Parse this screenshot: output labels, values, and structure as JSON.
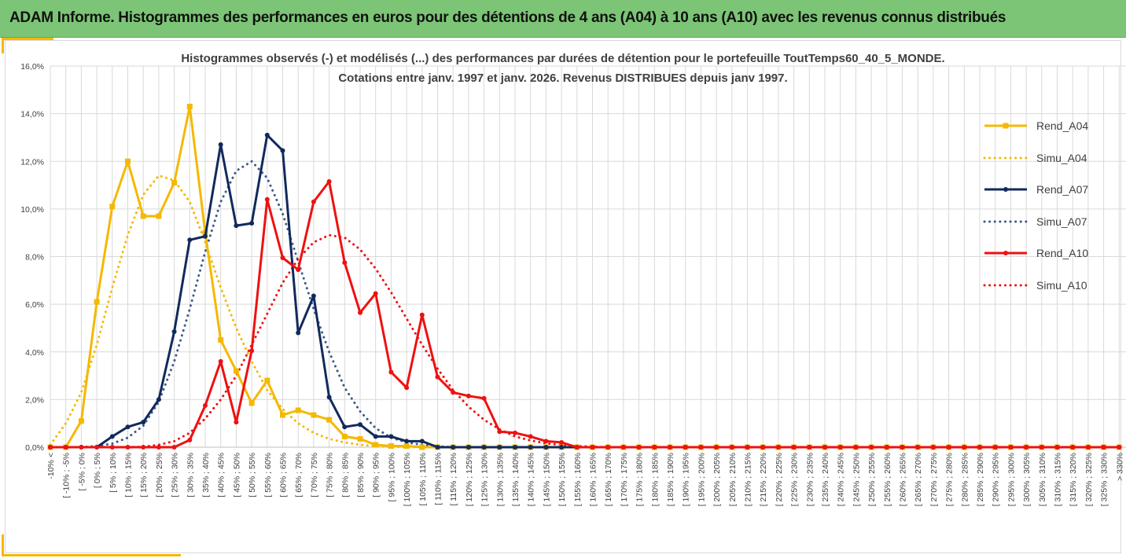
{
  "banner": {
    "title": "ADAM Informe. Histogrammes des performances en euros pour des détentions de 4 ans (A04) à 10 ans (A10) avec les revenus connus distribués",
    "color": "#7cc576",
    "accent_color": "#f5b800"
  },
  "chart_data": {
    "type": "line",
    "title_line1": "Histogrammes observés (-) et modélisés (...) des performances par durées de détention pour le portefeuille ToutTemps60_40_5_MONDE.",
    "title_line2": "Cotations entre janv. 1997 et janv. 2026. Revenus DISTRIBUES depuis janv 1997.",
    "ylim": [
      0,
      16
    ],
    "yticks": [
      "0,0%",
      "2,0%",
      "4,0%",
      "6,0%",
      "8,0%",
      "10,0%",
      "12,0%",
      "14,0%",
      "16,0%"
    ],
    "grid": true,
    "legend_position": "right",
    "categories": [
      "-10% <",
      "[ -10% ; -5%",
      "[ -5% ; 0%",
      "[ 0% ; 5%",
      "[ 5% ; 10%",
      "[ 10% ; 15%",
      "[ 15% ; 20%",
      "[ 20% ; 25%",
      "[ 25% ; 30%",
      "[ 30% ; 35%",
      "[ 35% ; 40%",
      "[ 40% ; 45%",
      "[ 45% ; 50%",
      "[ 50% ; 55%",
      "[ 55% ; 60%",
      "[ 60% ; 65%",
      "[ 65% ; 70%",
      "[ 70% ; 75%",
      "[ 75% ; 80%",
      "[ 80% ; 85%",
      "[ 85% ; 90%",
      "[ 90% ; 95%",
      "[ 95% ; 100%",
      "[ 100% ; 105%",
      "[ 105% ; 110%",
      "[ 110% ; 115%",
      "[ 115% ; 120%",
      "[ 120% ; 125%",
      "[ 125% ; 130%",
      "[ 130% ; 135%",
      "[ 135% ; 140%",
      "[ 140% ; 145%",
      "[ 145% ; 150%",
      "[ 150% ; 155%",
      "[ 155% ; 160%",
      "[ 160% ; 165%",
      "[ 165% ; 170%",
      "[ 170% ; 175%",
      "[ 175% ; 180%",
      "[ 180% ; 185%",
      "[ 185% ; 190%",
      "[ 190% ; 195%",
      "[ 195% ; 200%",
      "[ 200% ; 205%",
      "[ 205% ; 210%",
      "[ 210% ; 215%",
      "[ 215% ; 220%",
      "[ 220% ; 225%",
      "[ 225% ; 230%",
      "[ 230% ; 235%",
      "[ 235% ; 240%",
      "[ 240% ; 245%",
      "[ 245% ; 250%",
      "[ 250% ; 255%",
      "[ 255% ; 260%",
      "[ 260% ; 265%",
      "[ 265% ; 270%",
      "[ 270% ; 275%",
      "[ 275% ; 280%",
      "[ 280% ; 285%",
      "[ 285% ; 290%",
      "[ 290% ; 295%",
      "[ 295% ; 300%",
      "[ 300% ; 305%",
      "[ 305% ; 310%",
      "[ 310% ; 315%",
      "[ 315% ; 320%",
      "[ 320% ; 325%",
      "[ 325% ; 330%",
      "> 330%"
    ],
    "series": [
      {
        "name": "Rend_A04",
        "color": "#f5b800",
        "style": "solid",
        "markers": "square",
        "values": [
          0,
          0,
          1.1,
          6.1,
          10.1,
          12.0,
          9.7,
          9.7,
          11.1,
          14.3,
          9.0,
          4.5,
          3.2,
          1.85,
          2.8,
          1.35,
          1.55,
          1.35,
          1.15,
          0.45,
          0.35,
          0.1,
          0.05,
          0.05,
          0,
          0,
          0,
          0,
          0,
          0,
          0,
          0,
          0,
          0,
          0,
          0,
          0,
          0,
          0,
          0,
          0,
          0,
          0,
          0,
          0,
          0,
          0,
          0,
          0,
          0,
          0,
          0,
          0,
          0,
          0,
          0,
          0,
          0,
          0,
          0,
          0,
          0,
          0,
          0,
          0,
          0,
          0,
          0,
          0,
          0
        ]
      },
      {
        "name": "Simu_A04",
        "color": "#f5b800",
        "style": "dotted",
        "markers": "none",
        "values": [
          0.1,
          1.0,
          2.3,
          4.3,
          6.7,
          8.9,
          10.6,
          11.4,
          11.2,
          10.3,
          8.6,
          6.7,
          5.0,
          3.6,
          2.4,
          1.6,
          1.0,
          0.6,
          0.35,
          0.2,
          0.1,
          0.05,
          0.02,
          0,
          0,
          0,
          0,
          0,
          0,
          0,
          0,
          0,
          0,
          0,
          0,
          0,
          0,
          0,
          0,
          0,
          0,
          0,
          0,
          0,
          0,
          0,
          0,
          0,
          0,
          0,
          0,
          0,
          0,
          0,
          0,
          0,
          0,
          0,
          0,
          0,
          0,
          0,
          0,
          0,
          0,
          0,
          0,
          0,
          0,
          0
        ]
      },
      {
        "name": "Rend_A07",
        "color": "#112a5c",
        "style": "solid",
        "markers": "circle",
        "values": [
          0,
          0,
          0,
          0,
          0.45,
          0.85,
          1.05,
          2.0,
          4.85,
          8.7,
          8.85,
          12.7,
          9.3,
          9.4,
          13.1,
          12.45,
          4.8,
          6.35,
          2.1,
          0.85,
          0.95,
          0.45,
          0.45,
          0.25,
          0.25,
          0,
          0,
          0,
          0,
          0,
          0,
          0,
          0,
          0,
          0,
          0,
          0,
          0,
          0,
          0,
          0,
          0,
          0,
          0,
          0,
          0,
          0,
          0,
          0,
          0,
          0,
          0,
          0,
          0,
          0,
          0,
          0,
          0,
          0,
          0,
          0,
          0,
          0,
          0,
          0,
          0,
          0,
          0,
          0,
          0
        ]
      },
      {
        "name": "Simu_A07",
        "color": "#3a5a86",
        "style": "dotted",
        "markers": "none",
        "values": [
          0,
          0,
          0,
          0.05,
          0.15,
          0.4,
          0.9,
          1.9,
          3.6,
          5.8,
          8.2,
          10.3,
          11.6,
          12.0,
          11.3,
          9.8,
          7.8,
          5.8,
          4.0,
          2.5,
          1.5,
          0.8,
          0.4,
          0.2,
          0.1,
          0.04,
          0,
          0,
          0,
          0,
          0,
          0,
          0,
          0,
          0,
          0,
          0,
          0,
          0,
          0,
          0,
          0,
          0,
          0,
          0,
          0,
          0,
          0,
          0,
          0,
          0,
          0,
          0,
          0,
          0,
          0,
          0,
          0,
          0,
          0,
          0,
          0,
          0,
          0,
          0,
          0,
          0,
          0,
          0,
          0
        ]
      },
      {
        "name": "Rend_A10",
        "color": "#ee1111",
        "style": "solid",
        "markers": "circle",
        "values": [
          0,
          0,
          0,
          0,
          0,
          0,
          0,
          0,
          0,
          0.3,
          1.75,
          3.6,
          1.05,
          4.05,
          10.4,
          7.95,
          7.45,
          10.3,
          11.15,
          7.75,
          5.65,
          6.45,
          3.15,
          2.5,
          5.55,
          2.95,
          2.3,
          2.15,
          2.05,
          0.65,
          0.6,
          0.45,
          0.25,
          0.2,
          0,
          0,
          0,
          0,
          0,
          0,
          0,
          0,
          0,
          0,
          0,
          0,
          0,
          0,
          0,
          0,
          0,
          0,
          0,
          0,
          0,
          0,
          0,
          0,
          0,
          0,
          0,
          0,
          0,
          0,
          0,
          0,
          0,
          0,
          0,
          0
        ]
      },
      {
        "name": "Simu_A10",
        "color": "#ee1111",
        "style": "dotted",
        "markers": "none",
        "values": [
          0,
          0,
          0,
          0,
          0,
          0,
          0.02,
          0.1,
          0.25,
          0.6,
          1.2,
          2.0,
          3.0,
          4.3,
          5.6,
          6.9,
          7.9,
          8.6,
          8.9,
          8.8,
          8.3,
          7.5,
          6.5,
          5.4,
          4.3,
          3.3,
          2.4,
          1.7,
          1.15,
          0.75,
          0.45,
          0.28,
          0.16,
          0.09,
          0.05,
          0.02,
          0,
          0,
          0,
          0,
          0,
          0,
          0,
          0,
          0,
          0,
          0,
          0,
          0,
          0,
          0,
          0,
          0,
          0,
          0,
          0,
          0,
          0,
          0,
          0,
          0,
          0,
          0,
          0,
          0,
          0,
          0,
          0,
          0,
          0
        ]
      }
    ]
  }
}
